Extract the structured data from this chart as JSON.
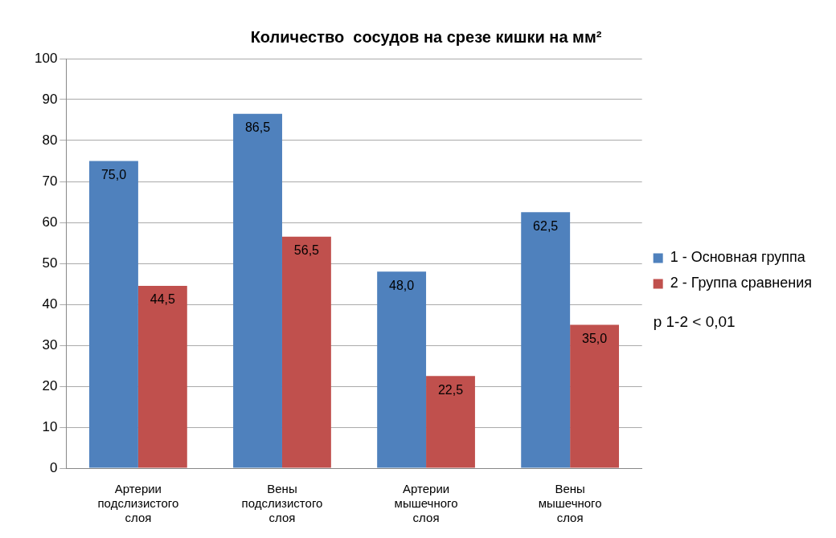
{
  "chart_data": {
    "type": "bar",
    "title": "Количество  сосудов на срезе кишки на мм²",
    "categories": [
      "Артерии подслизистого слоя",
      "Вены подслизистого слоя",
      "Артерии мышечного слоя",
      "Вены мышечного слоя"
    ],
    "series": [
      {
        "name": "1 - Основная группа",
        "color": "#4f81bd",
        "values": [
          75.0,
          86.5,
          48.0,
          62.5
        ],
        "value_labels": [
          "75,0",
          "86,5",
          "48,0",
          "62,5"
        ]
      },
      {
        "name": "2 - Группа сравнения",
        "color": "#c0504d",
        "values": [
          44.5,
          56.5,
          22.5,
          35.0
        ],
        "value_labels": [
          "44,5",
          "56,5",
          "22,5",
          "35,0"
        ]
      }
    ],
    "ylim": [
      0,
      100
    ],
    "yticks": [
      0,
      10,
      20,
      30,
      40,
      50,
      60,
      70,
      80,
      90,
      100
    ],
    "grid": "y",
    "legend": "right",
    "annotations": [
      "p 1-2 < 0,01"
    ]
  }
}
